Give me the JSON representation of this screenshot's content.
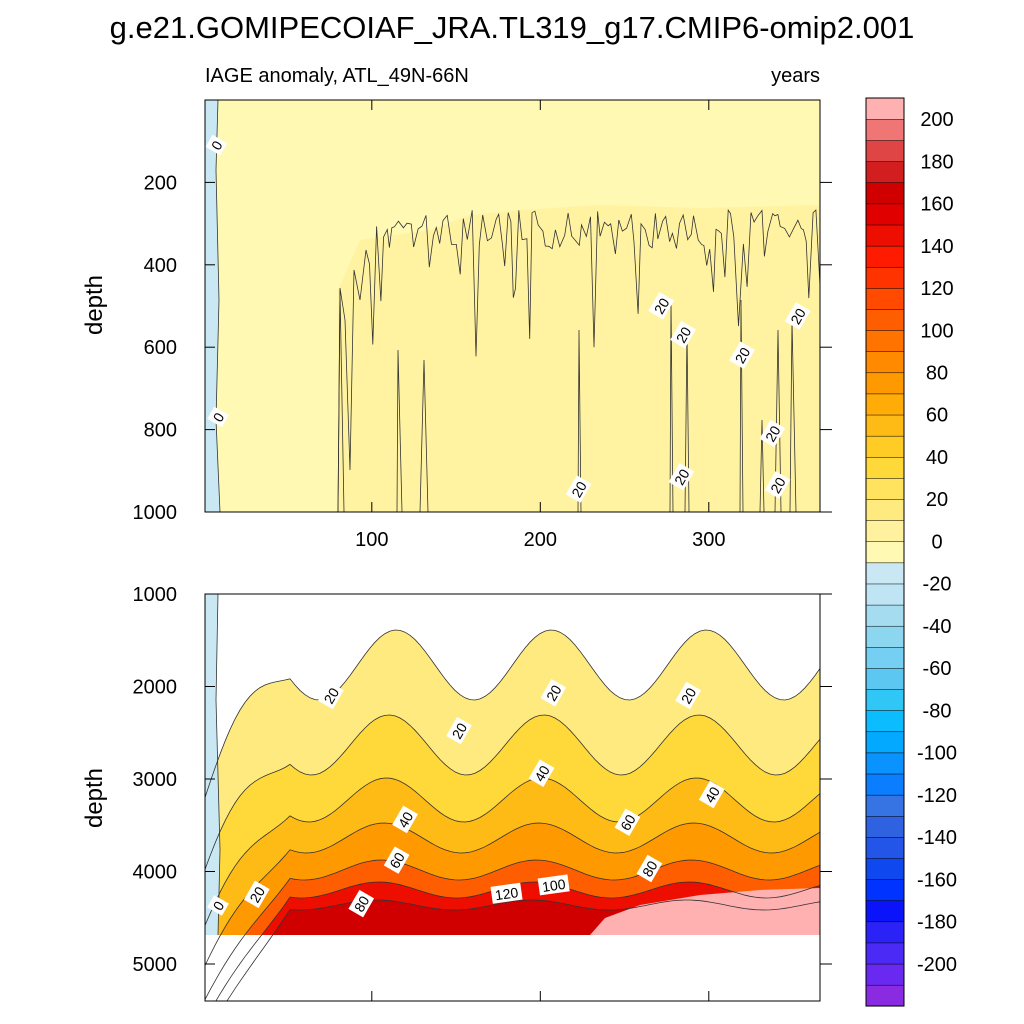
{
  "chart_data": {
    "type": "heatmap",
    "title": "g.e21.GOMIPECOIAF_JRA.TL319_g17.CMIP6-omip2.001",
    "subtitle_left": "IAGE anomaly, ATL_49N-66N",
    "subtitle_right": "years",
    "top_panel": {
      "ylabel": "depth",
      "yticks": [
        "200",
        "400",
        "600",
        "800",
        "1000"
      ],
      "ylim": [
        0,
        1000
      ],
      "xlim": [
        1,
        366
      ],
      "xticks": [
        "100",
        "200",
        "300"
      ],
      "contour_labels": [
        {
          "text": "0",
          "x": 8,
          "y": 110
        },
        {
          "text": "0",
          "x": 9,
          "y": 770
        },
        {
          "text": "20",
          "x": 223,
          "y": 945
        },
        {
          "text": "20",
          "x": 272,
          "y": 500
        },
        {
          "text": "20",
          "x": 285,
          "y": 570
        },
        {
          "text": "20",
          "x": 284,
          "y": 915
        },
        {
          "text": "20",
          "x": 320,
          "y": 620
        },
        {
          "text": "20",
          "x": 338,
          "y": 810
        },
        {
          "text": "20",
          "x": 341,
          "y": 935
        },
        {
          "text": "20",
          "x": 353,
          "y": 525
        }
      ]
    },
    "bottom_panel": {
      "ylabel": "depth",
      "yticks": [
        "1000",
        "2000",
        "3000",
        "4000",
        "5000"
      ],
      "ylim": [
        1000,
        5400
      ],
      "xlim": [
        1,
        366
      ],
      "contour_labels": [
        {
          "text": "0",
          "x": 9,
          "y": 4370
        },
        {
          "text": "20",
          "x": 32,
          "y": 4250
        },
        {
          "text": "20",
          "x": 76,
          "y": 2100
        },
        {
          "text": "20",
          "x": 152,
          "y": 2480
        },
        {
          "text": "20",
          "x": 208,
          "y": 2070
        },
        {
          "text": "20",
          "x": 288,
          "y": 2100
        },
        {
          "text": "40",
          "x": 120,
          "y": 3440
        },
        {
          "text": "40",
          "x": 201,
          "y": 2940
        },
        {
          "text": "40",
          "x": 302,
          "y": 3170
        },
        {
          "text": "60",
          "x": 115,
          "y": 3880
        },
        {
          "text": "60",
          "x": 252,
          "y": 3470
        },
        {
          "text": "80",
          "x": 94,
          "y": 4350
        },
        {
          "text": "80",
          "x": 265,
          "y": 3970
        },
        {
          "text": "100",
          "x": 208,
          "y": 4150
        },
        {
          "text": "120",
          "x": 180,
          "y": 4240
        }
      ]
    },
    "colorbar": {
      "levels": [
        -210,
        -200,
        -190,
        -180,
        -170,
        -160,
        -150,
        -140,
        -130,
        -120,
        -110,
        -100,
        -90,
        -80,
        -70,
        -60,
        -50,
        -40,
        -30,
        -20,
        -10,
        0,
        10,
        20,
        30,
        40,
        50,
        60,
        70,
        80,
        90,
        100,
        110,
        120,
        130,
        140,
        150,
        160,
        170,
        180,
        190,
        200,
        210
      ],
      "labels": [
        "200",
        "180",
        "160",
        "140",
        "120",
        "100",
        "80",
        "60",
        "40",
        "20",
        "0",
        "-20",
        "-40",
        "-60",
        "-80",
        "-100",
        "-120",
        "-140",
        "-160",
        "-180",
        "-200"
      ],
      "colors": [
        "#8a2be2",
        "#6a29f0",
        "#4b2af5",
        "#2b22f8",
        "#0b13fb",
        "#0033ff",
        "#1048ef",
        "#2255e8",
        "#2f62e0",
        "#3674e4",
        "#0a7eff",
        "#0a92ff",
        "#03a8ff",
        "#0bbdff",
        "#30c6f6",
        "#5cc8f2",
        "#74cff2",
        "#8dd6f0",
        "#a5dcef",
        "#bfe5f4",
        "#c9e8f4",
        "#fff9b3",
        "#fff19e",
        "#ffea80",
        "#ffe25e",
        "#ffd83a",
        "#ffcb25",
        "#ffbb15",
        "#ffab08",
        "#ff9900",
        "#ff8a00",
        "#ff7400",
        "#ff5e00",
        "#ff4a00",
        "#ff3300",
        "#ff1b00",
        "#ee0e00",
        "#e00000",
        "#d00000",
        "#d21e1e",
        "#e04545",
        "#f07575",
        "#ffb0b0"
      ]
    }
  }
}
